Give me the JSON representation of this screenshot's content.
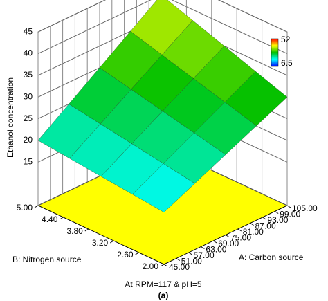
{
  "chart_data": {
    "type": "surface",
    "z_label": "Ethanol concentration",
    "x_label": "A: Carbon source",
    "y_label": "B: Nitrogen source",
    "caption": "At RPM=117 & pH=5",
    "subcaption": "(a)",
    "x": [
      45,
      60,
      75,
      90,
      105
    ],
    "y": [
      2,
      2.75,
      3.5,
      4.25,
      5
    ],
    "z": [
      [
        17,
        20.25,
        23.5,
        26.75,
        30
      ],
      [
        17.75,
        21.44,
        25.13,
        28.81,
        32.5
      ],
      [
        18.5,
        22.63,
        26.75,
        30.88,
        35
      ],
      [
        19.25,
        23.81,
        28.38,
        32.94,
        37.5
      ],
      [
        20,
        25,
        30,
        35,
        40
      ]
    ],
    "xlim": [
      45,
      105
    ],
    "ylim": [
      2,
      5
    ],
    "zlim": [
      5,
      45
    ],
    "xticks": [
      {
        "value": 45,
        "label": "45.00"
      },
      {
        "value": 51,
        "label": "51.00"
      },
      {
        "value": 57,
        "label": "57.00"
      },
      {
        "value": 63,
        "label": "63.00"
      },
      {
        "value": 69,
        "label": "69.00"
      },
      {
        "value": 75,
        "label": "75.00"
      },
      {
        "value": 81,
        "label": "81.00"
      },
      {
        "value": 87,
        "label": "87.00"
      },
      {
        "value": 93,
        "label": "93.00"
      },
      {
        "value": 99,
        "label": "99.00"
      },
      {
        "value": 105,
        "label": "105.00"
      }
    ],
    "yticks": [
      {
        "value": 2,
        "label": "2.00"
      },
      {
        "value": 2.6,
        "label": "2.60"
      },
      {
        "value": 3.2,
        "label": "3.20"
      },
      {
        "value": 3.8,
        "label": "3.80"
      },
      {
        "value": 4.4,
        "label": "4.40"
      },
      {
        "value": 5,
        "label": "5.00"
      }
    ],
    "zticks": [
      15,
      20,
      25,
      30,
      35,
      40,
      45
    ],
    "colorbar": {
      "range": [
        6.5,
        52
      ],
      "colors": [
        "#0000ff",
        "#00ffff",
        "#00c000",
        "#ffff00",
        "#ff0000"
      ]
    },
    "floor_color": "#ffff00",
    "grid": true
  }
}
